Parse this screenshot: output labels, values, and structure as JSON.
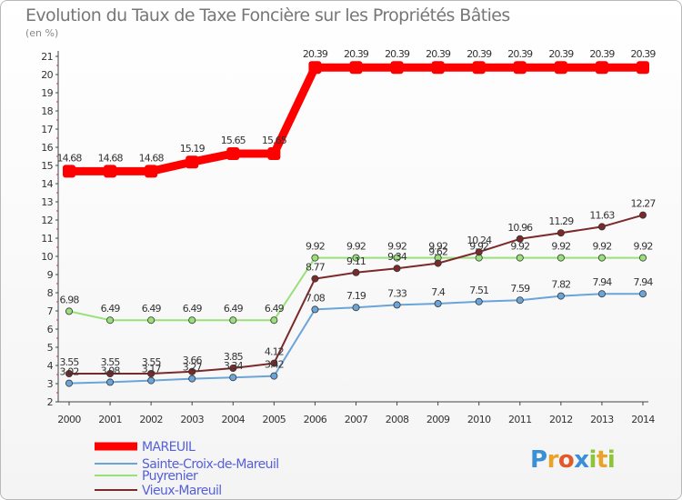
{
  "header": {
    "title": "Evolution du Taux de Taxe Foncière sur les Propriétés Bâties",
    "unit": "(en %)"
  },
  "logo": {
    "text": "Proxiti"
  },
  "chart_data": {
    "type": "line",
    "title": "Evolution du Taux de Taxe Foncière sur les Propriétés Bâties",
    "ylabel": "(en %)",
    "xlabel": "",
    "ylim": [
      2,
      21
    ],
    "yticks": [
      "2",
      "3",
      "4",
      "5",
      "6",
      "7",
      "8",
      "9",
      "10",
      "11",
      "12",
      "13",
      "14",
      "15",
      "16",
      "17",
      "18",
      "19",
      "20",
      "21"
    ],
    "grid": false,
    "legend": "bottom-left",
    "x": [
      "2000",
      "2001",
      "2002",
      "2003",
      "2004",
      "2005",
      "2006",
      "2007",
      "2008",
      "2009",
      "2010",
      "2011",
      "2012",
      "2013",
      "2014"
    ],
    "series": [
      {
        "name": "MAREUIL",
        "color": "#ff0000",
        "values": [
          14.68,
          14.68,
          14.68,
          15.19,
          15.65,
          15.65,
          20.39,
          20.39,
          20.39,
          20.39,
          20.39,
          20.39,
          20.39,
          20.39,
          20.39
        ],
        "labels": [
          "14.68",
          "14.68",
          "14.68",
          "15.19",
          "15.65",
          "15.65",
          "20.39",
          "20.39",
          "20.39",
          "20.39",
          "20.39",
          "20.39",
          "20.39",
          "20.39",
          "20.39"
        ]
      },
      {
        "name": "Sainte-Croix-de-Mareuil",
        "color": "#6aa4d8",
        "values": [
          3.02,
          3.08,
          3.17,
          3.27,
          3.34,
          3.42,
          7.08,
          7.19,
          7.33,
          7.4,
          7.51,
          7.59,
          7.82,
          7.94,
          7.94
        ],
        "labels": [
          "3.02",
          "3.08",
          "3.17",
          "3.27",
          "3.34",
          "3.42",
          "7.08",
          "7.19",
          "7.33",
          "7.4",
          "7.51",
          "7.59",
          "7.82",
          "7.94",
          "7.94"
        ]
      },
      {
        "name": "Puyrenier",
        "color": "#99e07a",
        "values": [
          6.98,
          6.49,
          6.49,
          6.49,
          6.49,
          6.49,
          9.92,
          9.92,
          9.92,
          9.92,
          9.92,
          9.92,
          9.92,
          9.92,
          9.92
        ],
        "labels": [
          "6.98",
          "6.49",
          "6.49",
          "6.49",
          "6.49",
          "6.49",
          "9.92",
          "9.92",
          "9.92",
          "9.92",
          "9.92",
          "9.92",
          "9.92",
          "9.92",
          "9.92"
        ]
      },
      {
        "name": "Vieux-Mareuil",
        "color": "#7a2a2a",
        "values": [
          3.55,
          3.55,
          3.55,
          3.66,
          3.85,
          4.12,
          8.77,
          9.11,
          9.34,
          9.62,
          10.24,
          10.96,
          11.29,
          11.63,
          12.27
        ],
        "labels": [
          "3.55",
          "3.55",
          "3.55",
          "3.66",
          "3.85",
          "4.12",
          "8.77",
          "9.11",
          "9.34",
          "9.62",
          "10.24",
          "10.96",
          "11.29",
          "11.63",
          "12.27"
        ]
      }
    ]
  }
}
